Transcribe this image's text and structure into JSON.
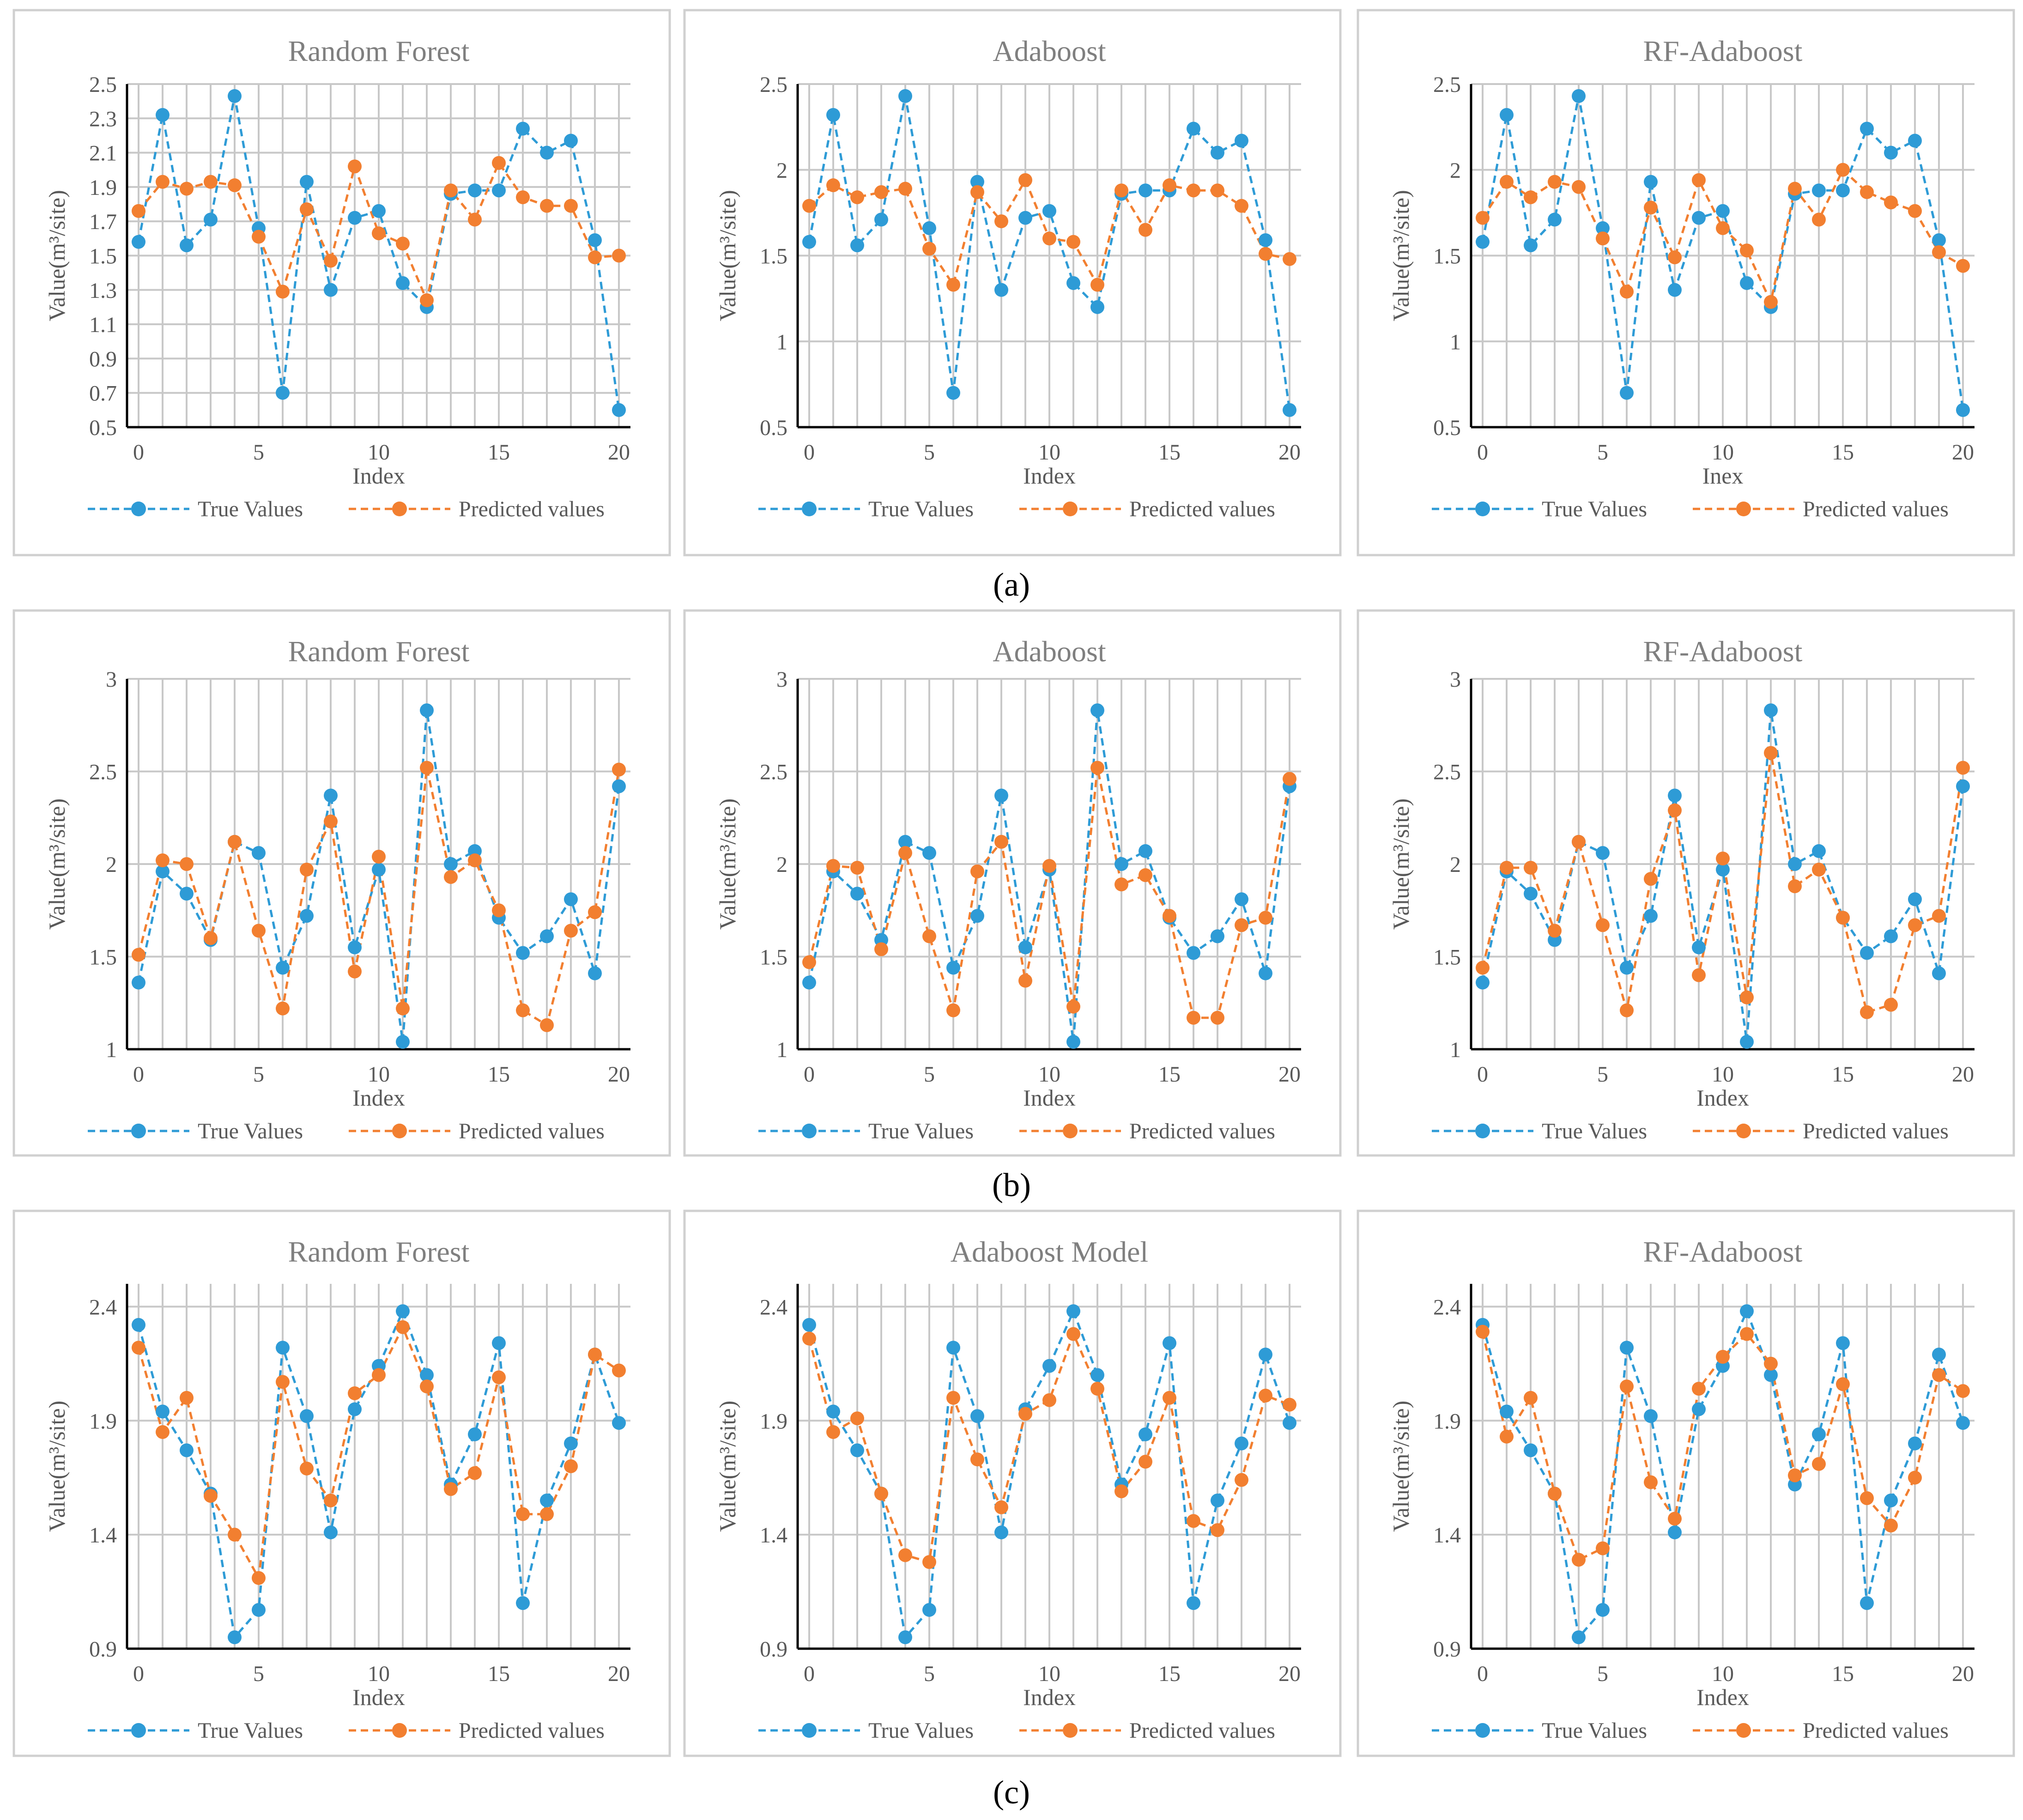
{
  "row_captions": [
    "(a)",
    "(b)",
    "(c)"
  ],
  "colors": {
    "true_series": "#2E9BD6",
    "pred_series": "#F27F30",
    "axis": "#000000",
    "grid": "#C8C8C8",
    "text": "#595959",
    "title": "#7F7F7F",
    "border": "#D0D0D0"
  },
  "chart_data": [
    {
      "type": "line",
      "title": "Random Forest",
      "xlabel": "Index",
      "ylabel": "Value(m³/site)",
      "xlim": [
        0,
        20
      ],
      "xticks": [
        0,
        5,
        10,
        15,
        20
      ],
      "ylim": [
        0.5,
        2.5
      ],
      "yticks": [
        0.5,
        0.7,
        0.9,
        1.1,
        1.3,
        1.5,
        1.7,
        1.9,
        2.1,
        2.3,
        2.5
      ],
      "ytick_labels": [
        "0.5",
        "0.7",
        "0.9",
        "1.1",
        "1.3",
        "1.5",
        "1.7",
        "1.9",
        "2.1",
        "2.3",
        "2.5"
      ],
      "legend": [
        "True Values",
        "Predicted values"
      ],
      "x": [
        0,
        1,
        2,
        3,
        4,
        5,
        6,
        7,
        8,
        9,
        10,
        11,
        12,
        13,
        14,
        15,
        16,
        17,
        18,
        19,
        20
      ],
      "series": [
        {
          "name": "True Values",
          "values": [
            1.58,
            2.32,
            1.56,
            1.71,
            2.43,
            1.66,
            0.7,
            1.93,
            1.3,
            1.72,
            1.76,
            1.34,
            1.2,
            1.86,
            1.88,
            1.88,
            2.24,
            2.1,
            2.17,
            1.59,
            0.6
          ]
        },
        {
          "name": "Predicted values",
          "values": [
            1.76,
            1.93,
            1.89,
            1.93,
            1.91,
            1.61,
            1.29,
            1.77,
            1.47,
            2.02,
            1.63,
            1.57,
            1.24,
            1.88,
            1.71,
            2.04,
            1.84,
            1.79,
            1.79,
            1.49,
            1.5
          ]
        }
      ]
    },
    {
      "type": "line",
      "title": "Adaboost",
      "xlabel": "Index",
      "ylabel": "Value(m³/site)",
      "xlim": [
        0,
        20
      ],
      "xticks": [
        0,
        5,
        10,
        15,
        20
      ],
      "ylim": [
        0.5,
        2.5
      ],
      "yticks": [
        0.5,
        1.0,
        1.5,
        2.0,
        2.5
      ],
      "ytick_labels": [
        "0.5",
        "1",
        "1.5",
        "2",
        "2.5"
      ],
      "legend": [
        "True Values",
        "Predicted values"
      ],
      "x": [
        0,
        1,
        2,
        3,
        4,
        5,
        6,
        7,
        8,
        9,
        10,
        11,
        12,
        13,
        14,
        15,
        16,
        17,
        18,
        19,
        20
      ],
      "series": [
        {
          "name": "True Values",
          "values": [
            1.58,
            2.32,
            1.56,
            1.71,
            2.43,
            1.66,
            0.7,
            1.93,
            1.3,
            1.72,
            1.76,
            1.34,
            1.2,
            1.86,
            1.88,
            1.88,
            2.24,
            2.1,
            2.17,
            1.59,
            0.6
          ]
        },
        {
          "name": "Predicted values",
          "values": [
            1.79,
            1.91,
            1.84,
            1.87,
            1.89,
            1.54,
            1.33,
            1.87,
            1.7,
            1.94,
            1.6,
            1.58,
            1.33,
            1.88,
            1.65,
            1.91,
            1.88,
            1.88,
            1.79,
            1.51,
            1.48
          ]
        }
      ]
    },
    {
      "type": "line",
      "title": "RF-Adaboost",
      "xlabel": "Inex",
      "ylabel": "Value(m³/site)",
      "xlim": [
        0,
        20
      ],
      "xticks": [
        0,
        5,
        10,
        15,
        20
      ],
      "ylim": [
        0.5,
        2.5
      ],
      "yticks": [
        0.5,
        1.0,
        1.5,
        2.0,
        2.5
      ],
      "ytick_labels": [
        "0.5",
        "1",
        "1.5",
        "2",
        "2.5"
      ],
      "legend": [
        "True Values",
        "Predicted values"
      ],
      "x": [
        0,
        1,
        2,
        3,
        4,
        5,
        6,
        7,
        8,
        9,
        10,
        11,
        12,
        13,
        14,
        15,
        16,
        17,
        18,
        19,
        20
      ],
      "series": [
        {
          "name": "True Values",
          "values": [
            1.58,
            2.32,
            1.56,
            1.71,
            2.43,
            1.66,
            0.7,
            1.93,
            1.3,
            1.72,
            1.76,
            1.34,
            1.2,
            1.86,
            1.88,
            1.88,
            2.24,
            2.1,
            2.17,
            1.59,
            0.6
          ]
        },
        {
          "name": "Predicted values",
          "values": [
            1.72,
            1.93,
            1.84,
            1.93,
            1.9,
            1.6,
            1.29,
            1.78,
            1.49,
            1.94,
            1.66,
            1.53,
            1.23,
            1.89,
            1.71,
            2.0,
            1.87,
            1.81,
            1.76,
            1.52,
            1.44
          ]
        }
      ]
    },
    {
      "type": "line",
      "title": "Random Forest",
      "xlabel": "Index",
      "ylabel": "Value(m³/site)",
      "xlim": [
        0,
        20
      ],
      "xticks": [
        0,
        5,
        10,
        15,
        20
      ],
      "ylim": [
        1,
        3
      ],
      "yticks": [
        1,
        1.5,
        2,
        2.5,
        3
      ],
      "ytick_labels": [
        "1",
        "1.5",
        "2",
        "2.5",
        "3"
      ],
      "legend": [
        "True Values",
        "Predicted values"
      ],
      "x": [
        0,
        1,
        2,
        3,
        4,
        5,
        6,
        7,
        8,
        9,
        10,
        11,
        12,
        13,
        14,
        15,
        16,
        17,
        18,
        19,
        20
      ],
      "series": [
        {
          "name": "True Values",
          "values": [
            1.36,
            1.96,
            1.84,
            1.59,
            2.12,
            2.06,
            1.44,
            1.72,
            2.37,
            1.55,
            1.97,
            1.04,
            2.83,
            2.0,
            2.07,
            1.71,
            1.52,
            1.61,
            1.81,
            1.41,
            2.42
          ]
        },
        {
          "name": "Predicted values",
          "values": [
            1.51,
            2.02,
            2.0,
            1.6,
            2.12,
            1.64,
            1.22,
            1.97,
            2.23,
            1.42,
            2.04,
            1.22,
            2.52,
            1.93,
            2.02,
            1.75,
            1.21,
            1.13,
            1.64,
            1.74,
            2.51
          ]
        }
      ]
    },
    {
      "type": "line",
      "title": "Adaboost",
      "xlabel": "Index",
      "ylabel": "Value(m³/site)",
      "xlim": [
        0,
        20
      ],
      "xticks": [
        0,
        5,
        10,
        15,
        20
      ],
      "ylim": [
        1,
        3
      ],
      "yticks": [
        1,
        1.5,
        2,
        2.5,
        3
      ],
      "ytick_labels": [
        "1",
        "1.5",
        "2",
        "2.5",
        "3"
      ],
      "legend": [
        "True Values",
        "Predicted values"
      ],
      "x": [
        0,
        1,
        2,
        3,
        4,
        5,
        6,
        7,
        8,
        9,
        10,
        11,
        12,
        13,
        14,
        15,
        16,
        17,
        18,
        19,
        20
      ],
      "series": [
        {
          "name": "True Values",
          "values": [
            1.36,
            1.96,
            1.84,
            1.59,
            2.12,
            2.06,
            1.44,
            1.72,
            2.37,
            1.55,
            1.97,
            1.04,
            2.83,
            2.0,
            2.07,
            1.71,
            1.52,
            1.61,
            1.81,
            1.41,
            2.42
          ]
        },
        {
          "name": "Predicted values",
          "values": [
            1.47,
            1.99,
            1.98,
            1.54,
            2.06,
            1.61,
            1.21,
            1.96,
            2.12,
            1.37,
            1.99,
            1.23,
            2.52,
            1.89,
            1.94,
            1.72,
            1.17,
            1.17,
            1.67,
            1.71,
            2.46
          ]
        }
      ]
    },
    {
      "type": "line",
      "title": "RF-Adaboost",
      "xlabel": "Index",
      "ylabel": "Value(m³/site)",
      "xlim": [
        0,
        20
      ],
      "xticks": [
        0,
        5,
        10,
        15,
        20
      ],
      "ylim": [
        1,
        3
      ],
      "yticks": [
        1,
        1.5,
        2,
        2.5,
        3
      ],
      "ytick_labels": [
        "1",
        "1.5",
        "2",
        "2.5",
        "3"
      ],
      "legend": [
        "True Values",
        "Predicted values"
      ],
      "x": [
        0,
        1,
        2,
        3,
        4,
        5,
        6,
        7,
        8,
        9,
        10,
        11,
        12,
        13,
        14,
        15,
        16,
        17,
        18,
        19,
        20
      ],
      "series": [
        {
          "name": "True Values",
          "values": [
            1.36,
            1.96,
            1.84,
            1.59,
            2.12,
            2.06,
            1.44,
            1.72,
            2.37,
            1.55,
            1.97,
            1.04,
            2.83,
            2.0,
            2.07,
            1.71,
            1.52,
            1.61,
            1.81,
            1.41,
            2.42
          ]
        },
        {
          "name": "Predicted values",
          "values": [
            1.44,
            1.98,
            1.98,
            1.64,
            2.12,
            1.67,
            1.21,
            1.92,
            2.29,
            1.4,
            2.03,
            1.28,
            2.6,
            1.88,
            1.97,
            1.71,
            1.2,
            1.24,
            1.67,
            1.72,
            2.52
          ]
        }
      ]
    },
    {
      "type": "line",
      "title": "Random Forest",
      "xlabel": "Index",
      "ylabel": "Value(m³/site)",
      "xlim": [
        0,
        20
      ],
      "xticks": [
        0,
        5,
        10,
        15,
        20
      ],
      "ylim": [
        0.9,
        2.5
      ],
      "yticks": [
        0.9,
        1.4,
        1.9,
        2.4
      ],
      "ytick_labels": [
        "0.9",
        "1.4",
        "1.9",
        "2.4"
      ],
      "legend": [
        "True Values",
        "Predicted values"
      ],
      "x": [
        0,
        1,
        2,
        3,
        4,
        5,
        6,
        7,
        8,
        9,
        10,
        11,
        12,
        13,
        14,
        15,
        16,
        17,
        18,
        19,
        20
      ],
      "series": [
        {
          "name": "True Values",
          "values": [
            2.32,
            1.94,
            1.77,
            1.58,
            0.95,
            1.07,
            2.22,
            1.92,
            1.41,
            1.95,
            2.14,
            2.38,
            2.1,
            1.62,
            1.84,
            2.24,
            1.1,
            1.55,
            1.8,
            2.19,
            1.89
          ]
        },
        {
          "name": "Predicted values",
          "values": [
            2.22,
            1.85,
            2.0,
            1.57,
            1.4,
            1.21,
            2.07,
            1.69,
            1.55,
            2.02,
            2.1,
            2.31,
            2.05,
            1.6,
            1.67,
            2.09,
            1.49,
            1.49,
            1.7,
            2.19,
            2.12
          ]
        }
      ]
    },
    {
      "type": "line",
      "title": "Adaboost Model",
      "xlabel": "Index",
      "ylabel": "Value(m³/site)",
      "xlim": [
        0,
        20
      ],
      "xticks": [
        0,
        5,
        10,
        15,
        20
      ],
      "ylim": [
        0.9,
        2.5
      ],
      "yticks": [
        0.9,
        1.4,
        1.9,
        2.4
      ],
      "ytick_labels": [
        "0.9",
        "1.4",
        "1.9",
        "2.4"
      ],
      "legend": [
        "True Values",
        "Predicted values"
      ],
      "x": [
        0,
        1,
        2,
        3,
        4,
        5,
        6,
        7,
        8,
        9,
        10,
        11,
        12,
        13,
        14,
        15,
        16,
        17,
        18,
        19,
        20
      ],
      "series": [
        {
          "name": "True Values",
          "values": [
            2.32,
            1.94,
            1.77,
            1.58,
            0.95,
            1.07,
            2.22,
            1.92,
            1.41,
            1.95,
            2.14,
            2.38,
            2.1,
            1.62,
            1.84,
            2.24,
            1.1,
            1.55,
            1.8,
            2.19,
            1.89
          ]
        },
        {
          "name": "Predicted values",
          "values": [
            2.26,
            1.85,
            1.91,
            1.58,
            1.31,
            1.28,
            2.0,
            1.73,
            1.52,
            1.93,
            1.99,
            2.28,
            2.04,
            1.59,
            1.72,
            2.0,
            1.46,
            1.42,
            1.64,
            2.01,
            1.97
          ]
        }
      ]
    },
    {
      "type": "line",
      "title": "RF-Adaboost",
      "xlabel": "Index",
      "ylabel": "Value(m³/site)",
      "xlim": [
        0,
        20
      ],
      "xticks": [
        0,
        5,
        10,
        15,
        20
      ],
      "ylim": [
        0.9,
        2.5
      ],
      "yticks": [
        0.9,
        1.4,
        1.9,
        2.4
      ],
      "ytick_labels": [
        "0.9",
        "1.4",
        "1.9",
        "2.4"
      ],
      "legend": [
        "True Values",
        "Predicted values"
      ],
      "x": [
        0,
        1,
        2,
        3,
        4,
        5,
        6,
        7,
        8,
        9,
        10,
        11,
        12,
        13,
        14,
        15,
        16,
        17,
        18,
        19,
        20
      ],
      "series": [
        {
          "name": "True Values",
          "values": [
            2.32,
            1.94,
            1.77,
            1.58,
            0.95,
            1.07,
            2.22,
            1.92,
            1.41,
            1.95,
            2.14,
            2.38,
            2.1,
            1.62,
            1.84,
            2.24,
            1.1,
            1.55,
            1.8,
            2.19,
            1.89
          ]
        },
        {
          "name": "Predicted values",
          "values": [
            2.29,
            1.83,
            2.0,
            1.58,
            1.29,
            1.34,
            2.05,
            1.63,
            1.47,
            2.04,
            2.18,
            2.28,
            2.15,
            1.66,
            1.71,
            2.06,
            1.56,
            1.44,
            1.65,
            2.1,
            2.03
          ]
        }
      ]
    }
  ]
}
